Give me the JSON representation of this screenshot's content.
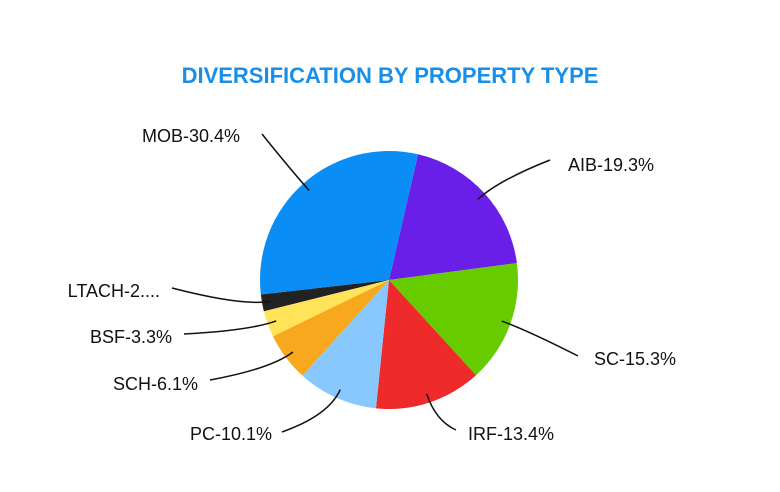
{
  "chart_data": {
    "type": "pie",
    "title": "DIVERSIFICATION BY PROPERTY TYPE",
    "values": [
      19.3,
      15.3,
      13.4,
      10.1,
      6.1,
      3.3,
      2.1,
      30.4
    ],
    "value_labels": [
      "AIB-19.3%",
      "SC-15.3%",
      "IRF-13.4%",
      "PC-10.1%",
      "SCH-6.1%",
      "BSF-3.3%",
      "LTACH-2....",
      "MOB-30.4%"
    ],
    "colors": [
      "#6a1fe8",
      "#66cc00",
      "#ee2a2a",
      "#88c8ff",
      "#f8a81c",
      "#ffe45a",
      "#222222",
      "#0a8ef5"
    ]
  }
}
